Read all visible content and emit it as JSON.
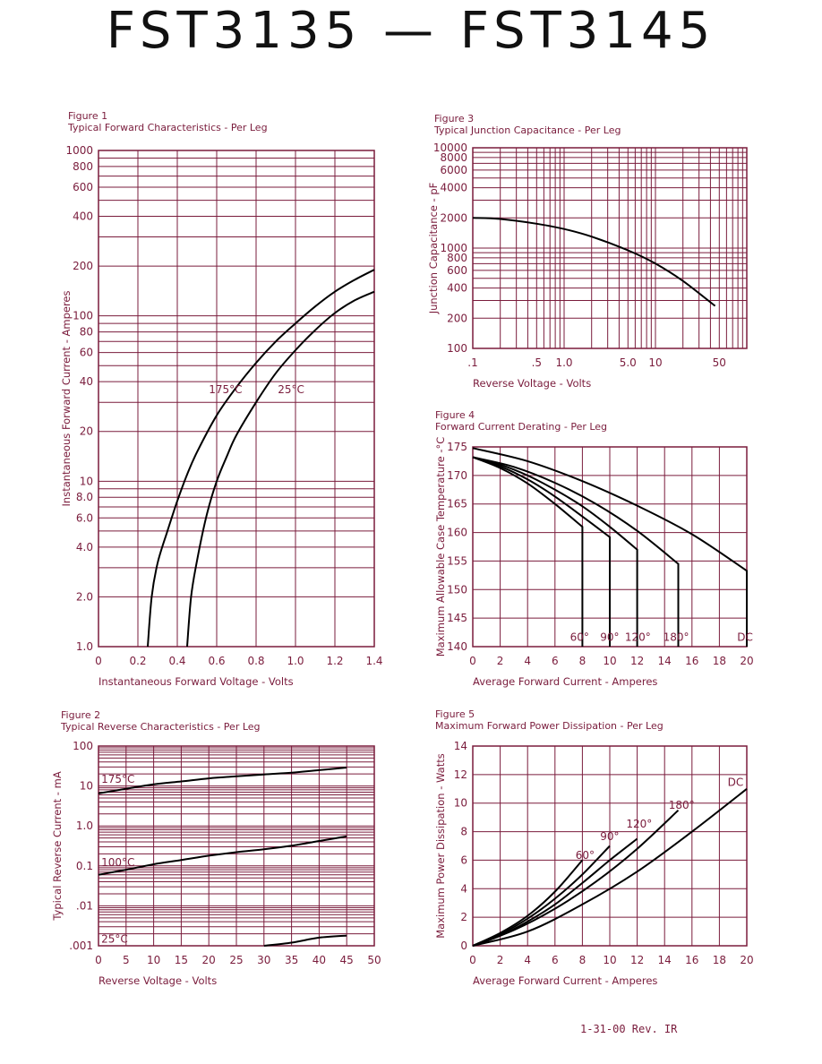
{
  "page": {
    "title": "FST3135  —  FST3145",
    "footer": "1-31-00   Rev. IR"
  },
  "colors": {
    "grid": "#7a1c3c",
    "curve": "#000000",
    "text": "#7a1c3c"
  },
  "chart_data": [
    {
      "id": "fig1",
      "type": "line",
      "figure_label": "Figure 1",
      "title": "Typical Forward Characteristics - Per Leg",
      "xlabel": "Instantaneous Forward Voltage - Volts",
      "ylabel": "Instantaneous Forward Current - Amperes",
      "xscale": "linear",
      "yscale": "log",
      "xlim": [
        0,
        1.4
      ],
      "ylim": [
        1,
        1000
      ],
      "xticks": [
        0,
        0.2,
        0.4,
        0.6,
        0.8,
        1.0,
        1.2,
        1.4
      ],
      "xtick_labels": [
        "0",
        "0.2",
        "0.4",
        "0.6",
        "0.8",
        "1.0",
        "1.2",
        "1.4"
      ],
      "yticks": [
        1,
        2,
        4,
        6,
        8,
        10,
        20,
        40,
        60,
        80,
        100,
        200,
        400,
        600,
        800,
        1000
      ],
      "ytick_labels": [
        "1.0",
        "2.0",
        "4.0",
        "6.0",
        "8.0",
        "10",
        "20",
        "40",
        "60",
        "80",
        "100",
        "200",
        "400",
        "600",
        "800",
        "1000"
      ],
      "ygrid": [
        1,
        2,
        3,
        4,
        5,
        6,
        7,
        8,
        9,
        10,
        20,
        30,
        40,
        50,
        60,
        70,
        80,
        90,
        100,
        200,
        300,
        400,
        500,
        600,
        700,
        800,
        900,
        1000
      ],
      "grid": true,
      "series": [
        {
          "name": "175°C",
          "x": [
            0.25,
            0.27,
            0.3,
            0.35,
            0.4,
            0.45,
            0.5,
            0.6,
            0.7,
            0.8,
            0.9,
            1.0,
            1.1,
            1.2,
            1.3,
            1.4
          ],
          "y": [
            1.0,
            2.0,
            3.2,
            5.0,
            7.6,
            11,
            15,
            25,
            37,
            52,
            70,
            90,
            114,
            140,
            165,
            190
          ]
        },
        {
          "name": "25°C",
          "x": [
            0.45,
            0.47,
            0.5,
            0.55,
            0.6,
            0.65,
            0.7,
            0.8,
            0.9,
            1.0,
            1.1,
            1.2,
            1.3,
            1.4
          ],
          "y": [
            1.0,
            2.0,
            3.3,
            6.3,
            10,
            14,
            19,
            30,
            45,
            62,
            82,
            104,
            124,
            140
          ]
        }
      ],
      "annotations": [
        {
          "text": "175°C",
          "x": 0.56,
          "y": 34
        },
        {
          "text": "25°C",
          "x": 0.91,
          "y": 34
        }
      ]
    },
    {
      "id": "fig2",
      "type": "line",
      "figure_label": "Figure 2",
      "title": "Typical Reverse Characteristics - Per Leg",
      "xlabel": "Reverse Voltage - Volts",
      "ylabel": "Typical Reverse Current - mA",
      "xscale": "linear",
      "yscale": "log",
      "xlim": [
        0,
        50
      ],
      "ylim": [
        0.001,
        100
      ],
      "xticks": [
        0,
        5,
        10,
        15,
        20,
        25,
        30,
        35,
        40,
        45,
        50
      ],
      "xtick_labels": [
        "0",
        "5",
        "10",
        "15",
        "20",
        "25",
        "30",
        "35",
        "40",
        "45",
        "50"
      ],
      "yticks": [
        0.001,
        0.01,
        0.1,
        1,
        10,
        100
      ],
      "ytick_labels": [
        ".001",
        ".01",
        "0.1",
        "1.0",
        "10",
        "100"
      ],
      "ygrid": [
        0.001,
        0.002,
        0.003,
        0.004,
        0.005,
        0.006,
        0.007,
        0.008,
        0.009,
        0.01,
        0.02,
        0.03,
        0.04,
        0.05,
        0.06,
        0.07,
        0.08,
        0.09,
        0.1,
        0.2,
        0.3,
        0.4,
        0.5,
        0.6,
        0.7,
        0.8,
        0.9,
        1,
        2,
        3,
        4,
        5,
        6,
        7,
        8,
        9,
        10,
        20,
        30,
        40,
        50,
        60,
        70,
        80,
        90,
        100
      ],
      "grid": true,
      "series": [
        {
          "name": "175°C",
          "x": [
            0,
            5,
            10,
            15,
            20,
            25,
            30,
            35,
            40,
            45
          ],
          "y": [
            6.5,
            8.5,
            11,
            13,
            15.5,
            17.5,
            19.5,
            21.5,
            25,
            29
          ]
        },
        {
          "name": "100°C",
          "x": [
            0,
            5,
            10,
            15,
            20,
            25,
            30,
            35,
            40,
            45
          ],
          "y": [
            0.06,
            0.08,
            0.11,
            0.14,
            0.18,
            0.22,
            0.26,
            0.32,
            0.42,
            0.55
          ]
        },
        {
          "name": "25°C",
          "x": [
            30,
            35,
            40,
            45
          ],
          "y": [
            0.001,
            0.0012,
            0.0016,
            0.0018
          ]
        }
      ],
      "annotations": [
        {
          "text": "175°C",
          "x": 0.5,
          "y": 12
        },
        {
          "text": "100°C",
          "x": 0.5,
          "y": 0.1
        },
        {
          "text": "25°C",
          "x": 0.5,
          "y": 0.0012
        }
      ]
    },
    {
      "id": "fig3",
      "type": "line",
      "figure_label": "Figure 3",
      "title": "Typical Junction Capacitance - Per Leg",
      "xlabel": "Reverse Voltage - Volts",
      "ylabel": "Junction Capacitance - pF",
      "xscale": "log",
      "yscale": "log",
      "xlim": [
        0.1,
        100
      ],
      "ylim": [
        100,
        10000
      ],
      "xticks": [
        0.1,
        0.5,
        1.0,
        5.0,
        10,
        50
      ],
      "xtick_labels": [
        ".1",
        ".5",
        "1.0",
        "5.0",
        "10",
        "50"
      ],
      "yticks": [
        100,
        200,
        400,
        600,
        800,
        1000,
        2000,
        4000,
        6000,
        8000,
        10000
      ],
      "ytick_labels": [
        "100",
        "200",
        "400",
        "600",
        "800",
        "1000",
        "2000",
        "4000",
        "6000",
        "8000",
        "10000"
      ],
      "xgrid": [
        0.1,
        0.2,
        0.3,
        0.4,
        0.5,
        0.6,
        0.7,
        0.8,
        0.9,
        1,
        2,
        3,
        4,
        5,
        6,
        7,
        8,
        9,
        10,
        20,
        30,
        40,
        50,
        60,
        70,
        80,
        90,
        100
      ],
      "ygrid": [
        100,
        200,
        300,
        400,
        500,
        600,
        700,
        800,
        900,
        1000,
        2000,
        3000,
        4000,
        5000,
        6000,
        7000,
        8000,
        9000,
        10000
      ],
      "grid": true,
      "series": [
        {
          "name": "",
          "x": [
            0.1,
            0.2,
            0.5,
            1,
            2,
            5,
            10,
            20,
            45
          ],
          "y": [
            2000,
            1950,
            1750,
            1550,
            1300,
            950,
            700,
            470,
            265
          ]
        }
      ],
      "annotations": []
    },
    {
      "id": "fig4",
      "type": "line",
      "figure_label": "Figure 4",
      "title": "Forward Current Derating - Per Leg",
      "xlabel": "Average Forward Current - Amperes",
      "ylabel": "Maximum Allowable Case Temperature -°C",
      "xscale": "linear",
      "yscale": "linear",
      "xlim": [
        0,
        20
      ],
      "ylim": [
        140,
        175
      ],
      "xticks": [
        0,
        2,
        4,
        6,
        8,
        10,
        12,
        14,
        16,
        18,
        20
      ],
      "xtick_labels": [
        "0",
        "2",
        "4",
        "6",
        "8",
        "10",
        "12",
        "14",
        "16",
        "18",
        "20"
      ],
      "yticks": [
        140,
        145,
        150,
        155,
        160,
        165,
        170,
        175
      ],
      "ytick_labels": [
        "140",
        "145",
        "150",
        "155",
        "160",
        "165",
        "170",
        "175"
      ],
      "grid": true,
      "series": [
        {
          "name": "60°",
          "x": [
            0,
            2,
            4,
            6,
            8,
            8
          ],
          "y": [
            173.2,
            171.3,
            168.6,
            165,
            161,
            140
          ]
        },
        {
          "name": "90°",
          "x": [
            0,
            2,
            4,
            6,
            8,
            10,
            10
          ],
          "y": [
            173.2,
            171.6,
            169.3,
            166.3,
            162.8,
            159.2,
            140
          ]
        },
        {
          "name": "120°",
          "x": [
            0,
            2,
            4,
            6,
            8,
            10,
            12,
            12
          ],
          "y": [
            173.2,
            171.9,
            170,
            167.5,
            164.6,
            161,
            157,
            140
          ]
        },
        {
          "name": "180°",
          "x": [
            0,
            3,
            6,
            9,
            12,
            15,
            15
          ],
          "y": [
            173.2,
            171.5,
            168.7,
            165,
            160.3,
            154.5,
            140
          ]
        },
        {
          "name": "DC",
          "x": [
            0,
            4,
            8,
            12,
            16,
            20,
            20
          ],
          "y": [
            174.8,
            172.5,
            169,
            164.7,
            159.7,
            153.3,
            140
          ]
        }
      ],
      "annotations": [
        {
          "text": "60°",
          "x": 7.1,
          "y": 141
        },
        {
          "text": "90°",
          "x": 9.3,
          "y": 141
        },
        {
          "text": "120°",
          "x": 11.1,
          "y": 141
        },
        {
          "text": "180°",
          "x": 13.9,
          "y": 141
        },
        {
          "text": "DC",
          "x": 19.3,
          "y": 141
        }
      ]
    },
    {
      "id": "fig5",
      "type": "line",
      "figure_label": "Figure 5",
      "title": "Maximum Forward Power Dissipation - Per Leg",
      "xlabel": "Average Forward Current - Amperes",
      "ylabel": "Maximum Power Dissipation - Watts",
      "xscale": "linear",
      "yscale": "linear",
      "xlim": [
        0,
        20
      ],
      "ylim": [
        0,
        14
      ],
      "xticks": [
        0,
        2,
        4,
        6,
        8,
        10,
        12,
        14,
        16,
        18,
        20
      ],
      "xtick_labels": [
        "0",
        "2",
        "4",
        "6",
        "8",
        "10",
        "12",
        "14",
        "16",
        "18",
        "20"
      ],
      "yticks": [
        0,
        2,
        4,
        6,
        8,
        10,
        12,
        14
      ],
      "ytick_labels": [
        "0",
        "2",
        "4",
        "6",
        "8",
        "10",
        "12",
        "14"
      ],
      "grid": true,
      "series": [
        {
          "name": "60°",
          "x": [
            0,
            2,
            4,
            6,
            8
          ],
          "y": [
            0,
            0.9,
            2.1,
            3.8,
            6.0
          ]
        },
        {
          "name": "90°",
          "x": [
            0,
            2,
            4,
            6,
            8,
            10
          ],
          "y": [
            0,
            0.8,
            1.9,
            3.3,
            5.0,
            7.0
          ]
        },
        {
          "name": "120°",
          "x": [
            0,
            2,
            4,
            6,
            8,
            10,
            12
          ],
          "y": [
            0,
            0.7,
            1.7,
            2.9,
            4.4,
            6.0,
            7.5
          ]
        },
        {
          "name": "180°",
          "x": [
            0,
            3,
            6,
            9,
            12,
            15
          ],
          "y": [
            0,
            1.1,
            2.6,
            4.5,
            6.8,
            9.5
          ]
        },
        {
          "name": "DC",
          "x": [
            0,
            4,
            8,
            12,
            16,
            20
          ],
          "y": [
            0,
            1.0,
            2.9,
            5.2,
            8.0,
            11.0
          ]
        }
      ],
      "annotations": [
        {
          "text": "60°",
          "x": 7.5,
          "y": 6.1
        },
        {
          "text": "90°",
          "x": 9.3,
          "y": 7.4
        },
        {
          "text": "120°",
          "x": 11.2,
          "y": 8.3
        },
        {
          "text": "180°",
          "x": 14.3,
          "y": 9.6
        },
        {
          "text": "DC",
          "x": 18.6,
          "y": 11.2
        }
      ]
    }
  ]
}
